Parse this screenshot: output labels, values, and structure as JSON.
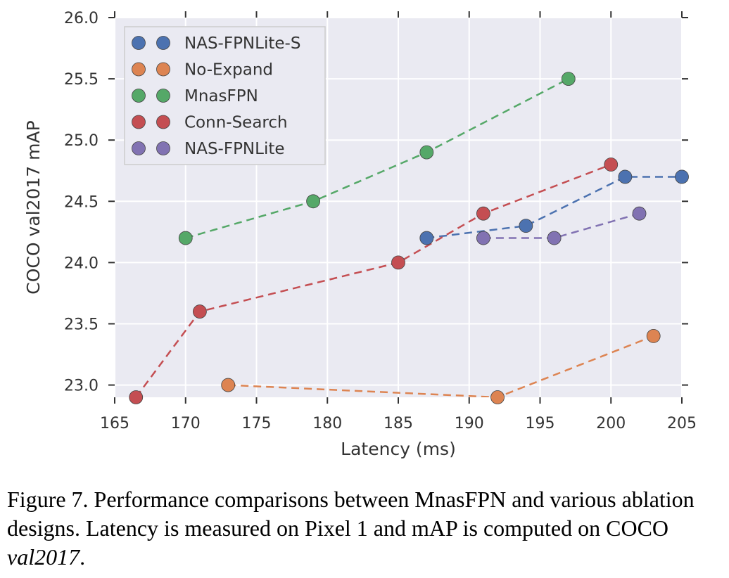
{
  "chart_data": {
    "type": "line",
    "xlabel": "Latency (ms)",
    "ylabel": "COCO val2017 mAP",
    "xlim": [
      165,
      205
    ],
    "ylim": [
      22.9,
      26.0
    ],
    "xticks": [
      "165",
      "170",
      "175",
      "180",
      "185",
      "190",
      "195",
      "200",
      "205"
    ],
    "yticks": [
      "23.0",
      "23.5",
      "24.0",
      "24.5",
      "25.0",
      "25.5",
      "26.0"
    ],
    "grid": true,
    "line_style": "dashed",
    "legend_position": "top-left",
    "series": [
      {
        "name": "NAS-FPNLite-S",
        "color": "#4c72b0",
        "x": [
          187,
          194,
          201,
          205
        ],
        "y": [
          24.2,
          24.3,
          24.7,
          24.7
        ]
      },
      {
        "name": "No-Expand",
        "color": "#dd8452",
        "x": [
          173,
          192,
          203
        ],
        "y": [
          23.0,
          22.9,
          23.4
        ]
      },
      {
        "name": "MnasFPN",
        "color": "#55a868",
        "x": [
          170,
          179,
          187,
          197
        ],
        "y": [
          24.2,
          24.5,
          24.9,
          25.5
        ]
      },
      {
        "name": "Conn-Search",
        "color": "#c44e52",
        "x": [
          166.5,
          171,
          185,
          191,
          200
        ],
        "y": [
          22.9,
          23.6,
          24.0,
          24.4,
          24.8
        ]
      },
      {
        "name": "NAS-FPNLite",
        "color": "#8172b2",
        "x": [
          191,
          196,
          202
        ],
        "y": [
          24.2,
          24.2,
          24.4
        ]
      }
    ]
  },
  "caption": {
    "main": "Figure 7. Performance comparisons between MnasFPN and various ablation designs. Latency is measured on Pixel 1 and mAP is computed on COCO ",
    "italic": "val2017",
    "end": "."
  }
}
